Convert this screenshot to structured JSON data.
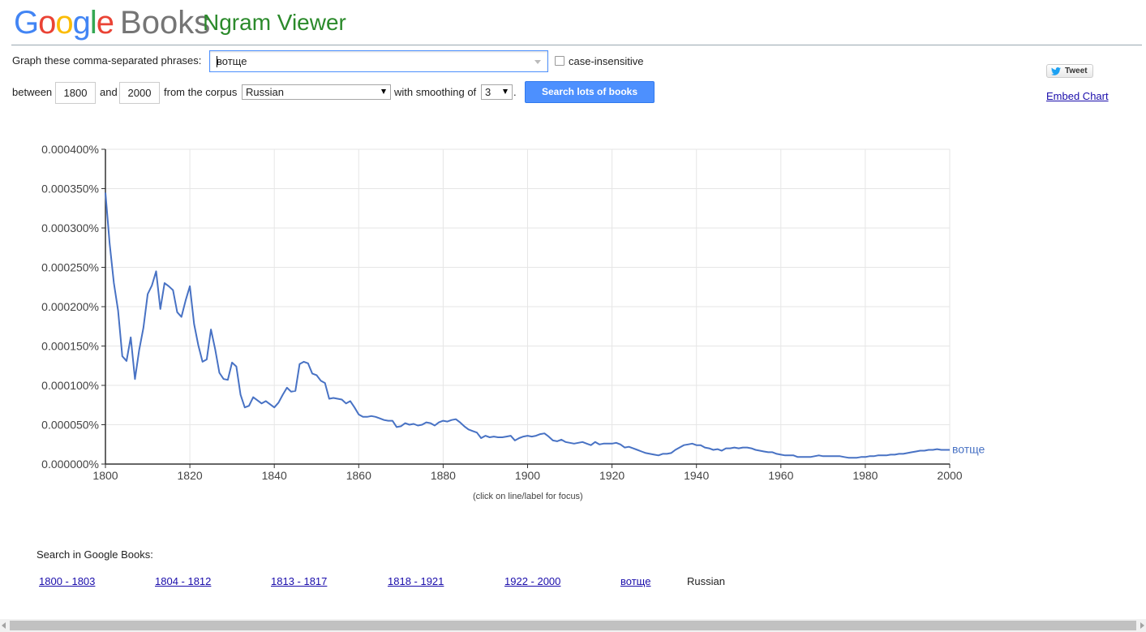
{
  "header": {
    "logo_letters": [
      "G",
      "o",
      "o",
      "g",
      "l",
      "e"
    ],
    "logo_books": "Books",
    "app_title": "Ngram Viewer"
  },
  "form": {
    "phrases_label": "Graph these comma-separated phrases:",
    "phrases_value": "вотще",
    "case_insensitive_label": "case-insensitive",
    "case_insensitive_checked": false,
    "between_label": "between",
    "start_year": "1800",
    "and_label": "and",
    "end_year": "2000",
    "corpus_label": "from the corpus",
    "corpus_value": "Russian",
    "smoothing_label": "with smoothing of",
    "smoothing_value": "3",
    "period": ".",
    "search_button_label": "Search lots of books"
  },
  "share": {
    "tweet_label": "Tweet",
    "embed_label": "Embed Chart"
  },
  "chart_data": {
    "type": "line",
    "title": "",
    "xlabel": "",
    "ylabel": "",
    "xlim": [
      1800,
      2000
    ],
    "ylim": [
      0,
      0.0004
    ],
    "grid": true,
    "x_ticks": [
      "1800",
      "1820",
      "1840",
      "1860",
      "1880",
      "1900",
      "1920",
      "1940",
      "1960",
      "1980",
      "2000"
    ],
    "y_ticks": [
      "0.000000%",
      "0.000050%",
      "0.000100%",
      "0.000150%",
      "0.000200%",
      "0.000250%",
      "0.000300%",
      "0.000350%",
      "0.000400%"
    ],
    "series": [
      {
        "name": "вотще",
        "color": "#4872c4",
        "points": [
          [
            1800,
            0.000345
          ],
          [
            1801,
            0.00028
          ],
          [
            1802,
            0.00023
          ],
          [
            1803,
            0.000195
          ],
          [
            1804,
            0.000137
          ],
          [
            1805,
            0.000131
          ],
          [
            1806,
            0.000161
          ],
          [
            1807,
            0.000108
          ],
          [
            1808,
            0.000145
          ],
          [
            1809,
            0.000173
          ],
          [
            1810,
            0.000216
          ],
          [
            1811,
            0.000227
          ],
          [
            1812,
            0.000245
          ],
          [
            1813,
            0.000197
          ],
          [
            1814,
            0.00023
          ],
          [
            1815,
            0.000226
          ],
          [
            1816,
            0.000221
          ],
          [
            1817,
            0.000193
          ],
          [
            1818,
            0.000187
          ],
          [
            1819,
            0.000208
          ],
          [
            1820,
            0.000226
          ],
          [
            1821,
            0.000178
          ],
          [
            1822,
            0.000151
          ],
          [
            1823,
            0.00013
          ],
          [
            1824,
            0.000133
          ],
          [
            1825,
            0.000171
          ],
          [
            1826,
            0.000146
          ],
          [
            1827,
            0.000116
          ],
          [
            1828,
            0.000108
          ],
          [
            1829,
            0.000107
          ],
          [
            1830,
            0.000129
          ],
          [
            1831,
            0.000124
          ],
          [
            1832,
            8.8e-05
          ],
          [
            1833,
            7.2e-05
          ],
          [
            1834,
            7.4e-05
          ],
          [
            1835,
            8.5e-05
          ],
          [
            1836,
            8.1e-05
          ],
          [
            1837,
            7.7e-05
          ],
          [
            1838,
            8e-05
          ],
          [
            1839,
            7.6e-05
          ],
          [
            1840,
            7.2e-05
          ],
          [
            1841,
            7.8e-05
          ],
          [
            1842,
            8.8e-05
          ],
          [
            1843,
            9.7e-05
          ],
          [
            1844,
            9.2e-05
          ],
          [
            1845,
            9.3e-05
          ],
          [
            1846,
            0.000127
          ],
          [
            1847,
            0.00013
          ],
          [
            1848,
            0.000128
          ],
          [
            1849,
            0.000115
          ],
          [
            1850,
            0.000113
          ],
          [
            1851,
            0.000106
          ],
          [
            1852,
            0.000103
          ],
          [
            1853,
            8.3e-05
          ],
          [
            1854,
            8.4e-05
          ],
          [
            1855,
            8.3e-05
          ],
          [
            1856,
            8.2e-05
          ],
          [
            1857,
            7.7e-05
          ],
          [
            1858,
            8e-05
          ],
          [
            1859,
            7.2e-05
          ],
          [
            1860,
            6.3e-05
          ],
          [
            1861,
            6e-05
          ],
          [
            1862,
            6e-05
          ],
          [
            1863,
            6.1e-05
          ],
          [
            1864,
            6e-05
          ],
          [
            1865,
            5.8e-05
          ],
          [
            1866,
            5.6e-05
          ],
          [
            1867,
            5.5e-05
          ],
          [
            1868,
            5.5e-05
          ],
          [
            1869,
            4.7e-05
          ],
          [
            1870,
            4.8e-05
          ],
          [
            1871,
            5.2e-05
          ],
          [
            1872,
            5e-05
          ],
          [
            1873,
            5.1e-05
          ],
          [
            1874,
            4.9e-05
          ],
          [
            1875,
            5e-05
          ],
          [
            1876,
            5.3e-05
          ],
          [
            1877,
            5.2e-05
          ],
          [
            1878,
            4.9e-05
          ],
          [
            1879,
            5.3e-05
          ],
          [
            1880,
            5.5e-05
          ],
          [
            1881,
            5.4e-05
          ],
          [
            1882,
            5.6e-05
          ],
          [
            1883,
            5.7e-05
          ],
          [
            1884,
            5.3e-05
          ],
          [
            1885,
            4.8e-05
          ],
          [
            1886,
            4.4e-05
          ],
          [
            1887,
            4.2e-05
          ],
          [
            1888,
            4e-05
          ],
          [
            1889,
            3.3e-05
          ],
          [
            1890,
            3.6e-05
          ],
          [
            1891,
            3.4e-05
          ],
          [
            1892,
            3.5e-05
          ],
          [
            1893,
            3.4e-05
          ],
          [
            1894,
            3.4e-05
          ],
          [
            1895,
            3.5e-05
          ],
          [
            1896,
            3.6e-05
          ],
          [
            1897,
            3e-05
          ],
          [
            1898,
            3.3e-05
          ],
          [
            1899,
            3.5e-05
          ],
          [
            1900,
            3.6e-05
          ],
          [
            1901,
            3.5e-05
          ],
          [
            1902,
            3.6e-05
          ],
          [
            1903,
            3.8e-05
          ],
          [
            1904,
            3.9e-05
          ],
          [
            1905,
            3.5e-05
          ],
          [
            1906,
            3e-05
          ],
          [
            1907,
            2.9e-05
          ],
          [
            1908,
            3.1e-05
          ],
          [
            1909,
            2.8e-05
          ],
          [
            1910,
            2.7e-05
          ],
          [
            1911,
            2.6e-05
          ],
          [
            1912,
            2.7e-05
          ],
          [
            1913,
            2.8e-05
          ],
          [
            1914,
            2.6e-05
          ],
          [
            1915,
            2.4e-05
          ],
          [
            1916,
            2.8e-05
          ],
          [
            1917,
            2.5e-05
          ],
          [
            1918,
            2.6e-05
          ],
          [
            1919,
            2.6e-05
          ],
          [
            1920,
            2.6e-05
          ],
          [
            1921,
            2.7e-05
          ],
          [
            1922,
            2.5e-05
          ],
          [
            1923,
            2.1e-05
          ],
          [
            1924,
            2.2e-05
          ],
          [
            1925,
            2e-05
          ],
          [
            1926,
            1.8e-05
          ],
          [
            1927,
            1.6e-05
          ],
          [
            1928,
            1.4e-05
          ],
          [
            1929,
            1.3e-05
          ],
          [
            1930,
            1.2e-05
          ],
          [
            1931,
            1.1e-05
          ],
          [
            1932,
            1.3e-05
          ],
          [
            1933,
            1.3e-05
          ],
          [
            1934,
            1.4e-05
          ],
          [
            1935,
            1.8e-05
          ],
          [
            1936,
            2.1e-05
          ],
          [
            1937,
            2.4e-05
          ],
          [
            1938,
            2.5e-05
          ],
          [
            1939,
            2.6e-05
          ],
          [
            1940,
            2.4e-05
          ],
          [
            1941,
            2.4e-05
          ],
          [
            1942,
            2.1e-05
          ],
          [
            1943,
            2e-05
          ],
          [
            1944,
            1.8e-05
          ],
          [
            1945,
            1.9e-05
          ],
          [
            1946,
            1.7e-05
          ],
          [
            1947,
            2e-05
          ],
          [
            1948,
            2e-05
          ],
          [
            1949,
            2.1e-05
          ],
          [
            1950,
            2e-05
          ],
          [
            1951,
            2.1e-05
          ],
          [
            1952,
            2.1e-05
          ],
          [
            1953,
            2e-05
          ],
          [
            1954,
            1.8e-05
          ],
          [
            1955,
            1.7e-05
          ],
          [
            1956,
            1.6e-05
          ],
          [
            1957,
            1.5e-05
          ],
          [
            1958,
            1.5e-05
          ],
          [
            1959,
            1.3e-05
          ],
          [
            1960,
            1.2e-05
          ],
          [
            1961,
            1.1e-05
          ],
          [
            1962,
            1.1e-05
          ],
          [
            1963,
            1.1e-05
          ],
          [
            1964,
            9e-06
          ],
          [
            1965,
            9e-06
          ],
          [
            1966,
            9e-06
          ],
          [
            1967,
            9e-06
          ],
          [
            1968,
            1e-05
          ],
          [
            1969,
            1.1e-05
          ],
          [
            1970,
            1e-05
          ],
          [
            1971,
            1e-05
          ],
          [
            1972,
            1e-05
          ],
          [
            1973,
            1e-05
          ],
          [
            1974,
            1e-05
          ],
          [
            1975,
            9e-06
          ],
          [
            1976,
            8e-06
          ],
          [
            1977,
            8e-06
          ],
          [
            1978,
            8e-06
          ],
          [
            1979,
            9e-06
          ],
          [
            1980,
            9e-06
          ],
          [
            1981,
            1e-05
          ],
          [
            1982,
            1e-05
          ],
          [
            1983,
            1.1e-05
          ],
          [
            1984,
            1.1e-05
          ],
          [
            1985,
            1.1e-05
          ],
          [
            1986,
            1.2e-05
          ],
          [
            1987,
            1.2e-05
          ],
          [
            1988,
            1.3e-05
          ],
          [
            1989,
            1.3e-05
          ],
          [
            1990,
            1.4e-05
          ],
          [
            1991,
            1.5e-05
          ],
          [
            1992,
            1.6e-05
          ],
          [
            1993,
            1.7e-05
          ],
          [
            1994,
            1.7e-05
          ],
          [
            1995,
            1.8e-05
          ],
          [
            1996,
            1.8e-05
          ],
          [
            1997,
            1.9e-05
          ],
          [
            1998,
            1.8e-05
          ],
          [
            1999,
            1.8e-05
          ],
          [
            2000,
            1.8e-05
          ]
        ]
      }
    ]
  },
  "chart_hint": "(click on line/label for focus)",
  "footer": {
    "search_label": "Search in Google Books:",
    "ranges": [
      "1800 - 1803",
      "1804 - 1812",
      "1813 - 1817",
      "1818 - 1921",
      "1922 - 2000"
    ],
    "phrase_link": "вотще",
    "corpus_name": "Russian"
  }
}
